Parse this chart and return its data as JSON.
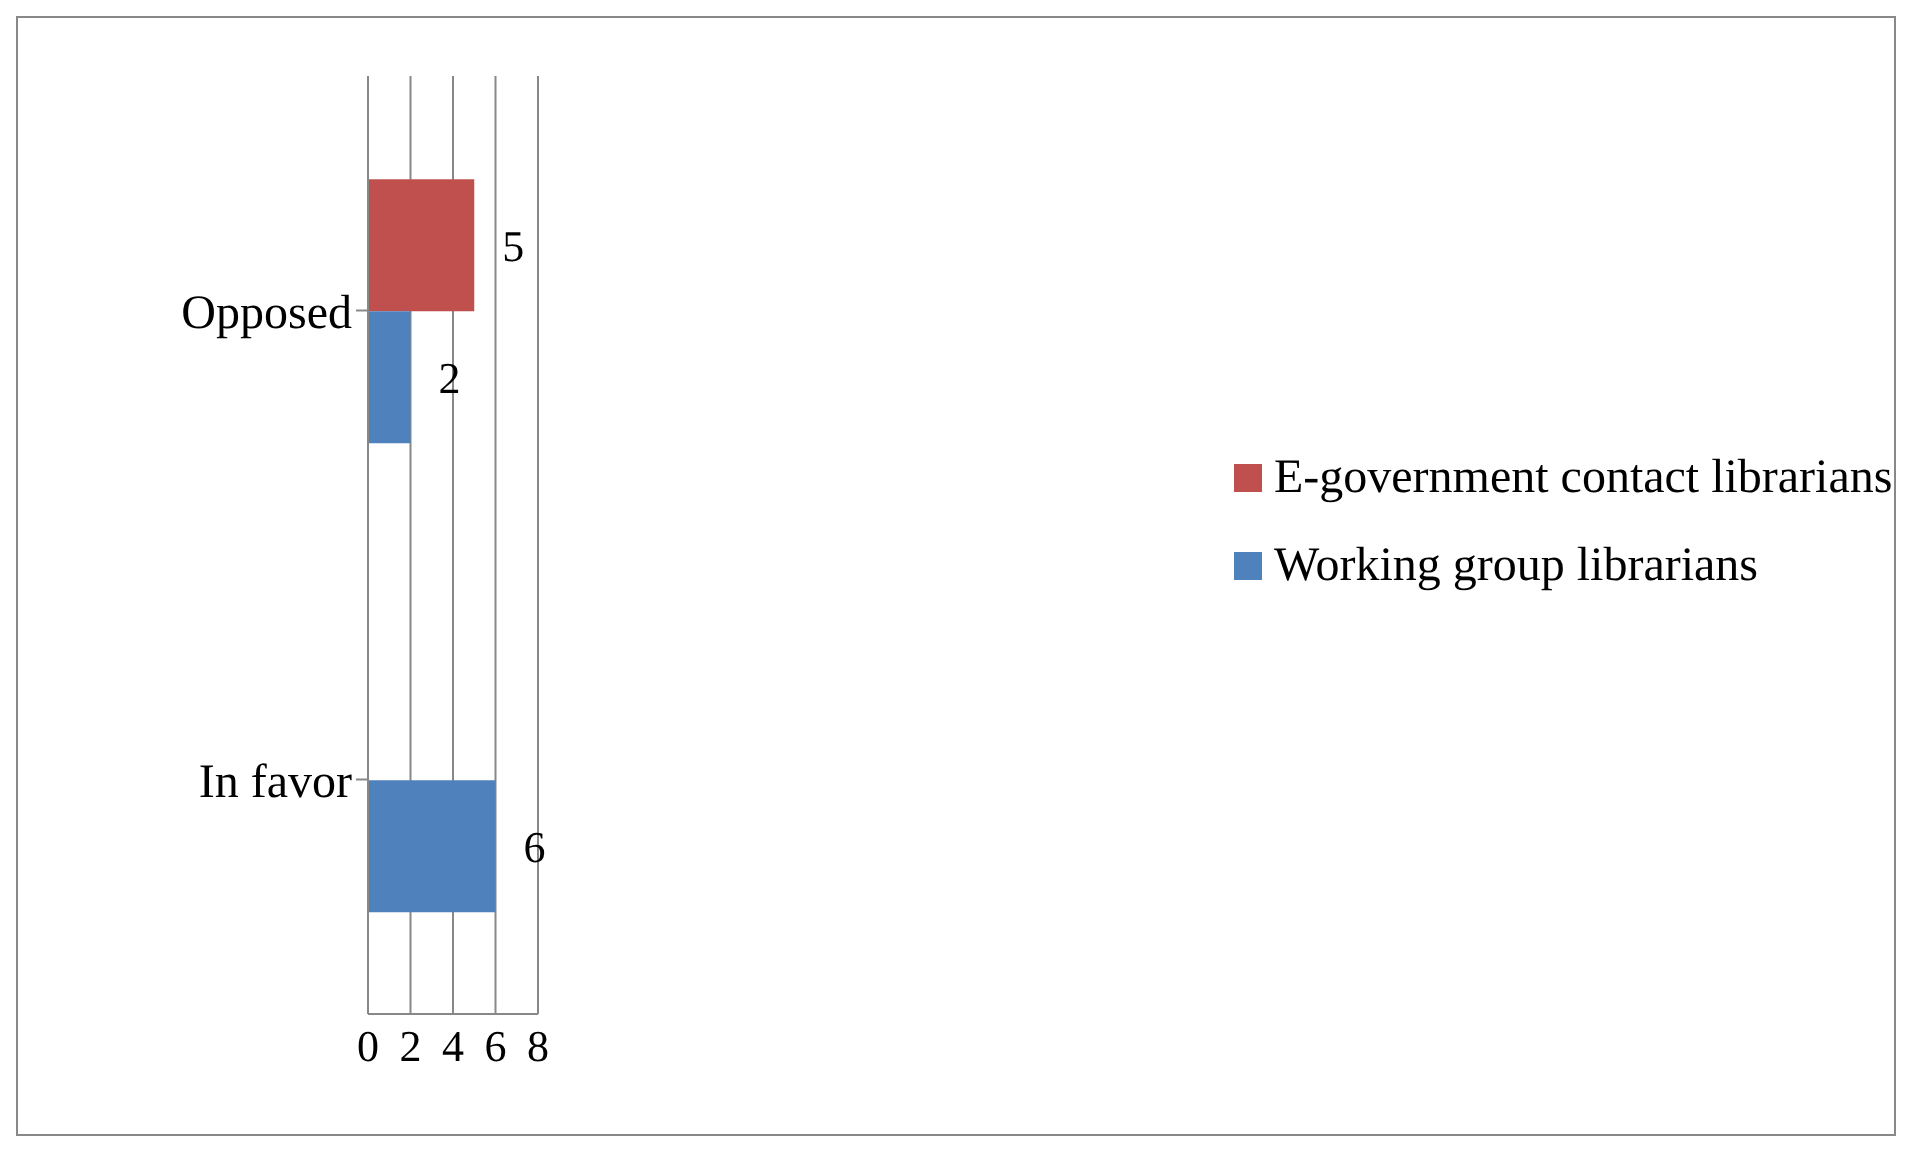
{
  "chart_data": {
    "type": "bar",
    "orientation": "horizontal",
    "categories": [
      "Opposed",
      "In favor"
    ],
    "series": [
      {
        "name": "E-government contact librarians",
        "color": "#c0504d",
        "values": [
          5,
          null
        ]
      },
      {
        "name": "Working group librarians",
        "color": "#4f81bd",
        "values": [
          2,
          6
        ]
      }
    ],
    "xlim": [
      0,
      8
    ],
    "xticks": [
      0,
      2,
      4,
      6,
      8
    ],
    "grid": "x",
    "legend": "right",
    "data_labels": true
  }
}
